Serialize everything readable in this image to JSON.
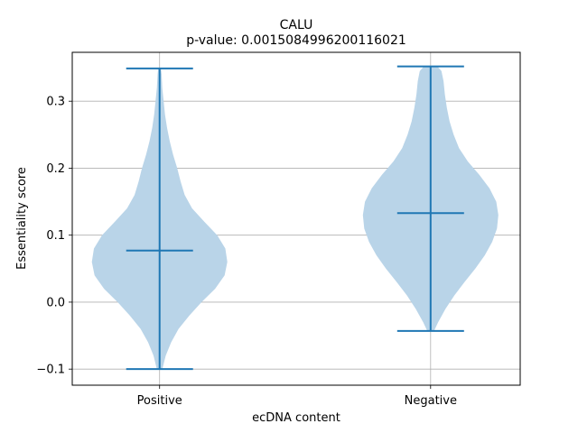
{
  "chart_data": {
    "type": "violin",
    "title": "CALU",
    "subtitle": "p-value: 0.0015084996200116021",
    "xlabel": "ecDNA content",
    "ylabel": "Essentiality score",
    "categories": [
      "Positive",
      "Negative"
    ],
    "ylim": [
      -0.124,
      0.373
    ],
    "yticks": [
      -0.1,
      0.0,
      0.1,
      0.2,
      0.3
    ],
    "ytick_labels": [
      "−0.1",
      "0.0",
      "0.1",
      "0.2",
      "0.3"
    ],
    "grid": true,
    "series": [
      {
        "category": "Positive",
        "min": -0.1,
        "median": 0.077,
        "max": 0.349,
        "density": [
          [
            -0.1,
            0.04
          ],
          [
            -0.08,
            0.09
          ],
          [
            -0.06,
            0.17
          ],
          [
            -0.04,
            0.28
          ],
          [
            -0.02,
            0.44
          ],
          [
            0.0,
            0.62
          ],
          [
            0.02,
            0.82
          ],
          [
            0.04,
            0.96
          ],
          [
            0.06,
            1.0
          ],
          [
            0.08,
            0.97
          ],
          [
            0.1,
            0.85
          ],
          [
            0.12,
            0.66
          ],
          [
            0.14,
            0.48
          ],
          [
            0.16,
            0.37
          ],
          [
            0.18,
            0.31
          ],
          [
            0.2,
            0.26
          ],
          [
            0.22,
            0.2
          ],
          [
            0.24,
            0.15
          ],
          [
            0.26,
            0.11
          ],
          [
            0.28,
            0.08
          ],
          [
            0.3,
            0.06
          ],
          [
            0.32,
            0.04
          ],
          [
            0.34,
            0.03
          ],
          [
            0.349,
            0.02
          ]
        ]
      },
      {
        "category": "Negative",
        "min": -0.043,
        "median": 0.133,
        "max": 0.352,
        "density": [
          [
            -0.043,
            0.05
          ],
          [
            -0.03,
            0.11
          ],
          [
            -0.01,
            0.22
          ],
          [
            0.01,
            0.35
          ],
          [
            0.03,
            0.5
          ],
          [
            0.05,
            0.66
          ],
          [
            0.07,
            0.8
          ],
          [
            0.09,
            0.91
          ],
          [
            0.11,
            0.98
          ],
          [
            0.13,
            1.0
          ],
          [
            0.15,
            0.97
          ],
          [
            0.17,
            0.87
          ],
          [
            0.19,
            0.72
          ],
          [
            0.21,
            0.55
          ],
          [
            0.23,
            0.42
          ],
          [
            0.25,
            0.34
          ],
          [
            0.27,
            0.28
          ],
          [
            0.29,
            0.24
          ],
          [
            0.31,
            0.21
          ],
          [
            0.33,
            0.19
          ],
          [
            0.345,
            0.16
          ],
          [
            0.352,
            0.1
          ]
        ]
      }
    ],
    "colors": {
      "fill": "#b9d4e8",
      "line": "#1f77b4",
      "grid": "#b0b0b0"
    }
  }
}
